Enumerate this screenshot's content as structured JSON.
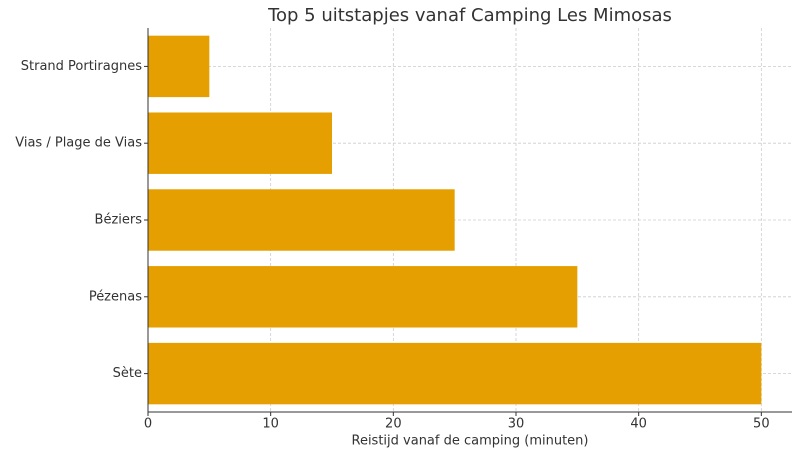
{
  "chart_data": {
    "type": "barh",
    "title": "Top 5 uitstapjes vanaf Camping Les Mimosas",
    "xlabel": "Reistijd vanaf de camping (minuten)",
    "categories": [
      "Strand Portiragnes",
      "Vias / Plage de Vias",
      "Béziers",
      "Pézenas",
      "Sète"
    ],
    "values": [
      5,
      15,
      25,
      35,
      50
    ],
    "color": "#e69f00",
    "xlim": [
      0,
      52.5
    ],
    "xticks": [
      0,
      10,
      20,
      30,
      40,
      50
    ],
    "grid": true
  }
}
